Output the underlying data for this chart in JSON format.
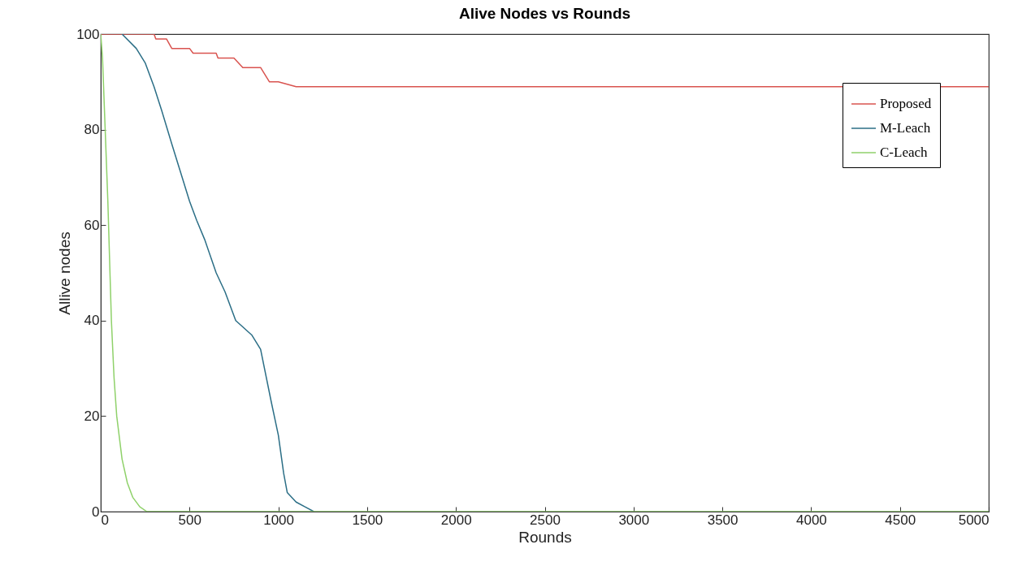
{
  "chart_data": {
    "type": "line",
    "title": "Alive Nodes vs Rounds",
    "xlabel": "Rounds",
    "ylabel": "Allive nodes",
    "xlim": [
      0,
      5000
    ],
    "ylim": [
      0,
      100
    ],
    "xticks": [
      0,
      500,
      1000,
      1500,
      2000,
      2500,
      3000,
      3500,
      4000,
      4500,
      5000
    ],
    "yticks": [
      0,
      20,
      40,
      60,
      80,
      100
    ],
    "grid": false,
    "legend": "top right",
    "series": [
      {
        "name": "Proposed",
        "color": "#d9534f",
        "x": [
          0,
          300,
          310,
          370,
          400,
          500,
          520,
          650,
          660,
          750,
          800,
          900,
          950,
          1000,
          1100,
          5000
        ],
        "values": [
          100,
          100,
          99,
          99,
          97,
          97,
          96,
          96,
          95,
          95,
          93,
          93,
          90,
          90,
          89,
          89
        ]
      },
      {
        "name": "M-Leach",
        "color": "#2b6e86",
        "x": [
          120,
          200,
          250,
          300,
          343,
          400,
          450,
          500,
          540,
          585,
          650,
          700,
          760,
          850,
          900,
          960,
          1000,
          1030,
          1050,
          1100,
          1150,
          1200
        ],
        "values": [
          100,
          97,
          94,
          89,
          84,
          77,
          71,
          65,
          61,
          57,
          50,
          46,
          40,
          37,
          34,
          23,
          16,
          8,
          4,
          2,
          1,
          0
        ]
      },
      {
        "name": "C-Leach",
        "color": "#8fd16a",
        "x": [
          0,
          10,
          25,
          40,
          60,
          75,
          90,
          120,
          150,
          180,
          220,
          260,
          5000
        ],
        "values": [
          100,
          95,
          80,
          65,
          40,
          28,
          20,
          11,
          6,
          3,
          1,
          0,
          0
        ]
      }
    ]
  }
}
